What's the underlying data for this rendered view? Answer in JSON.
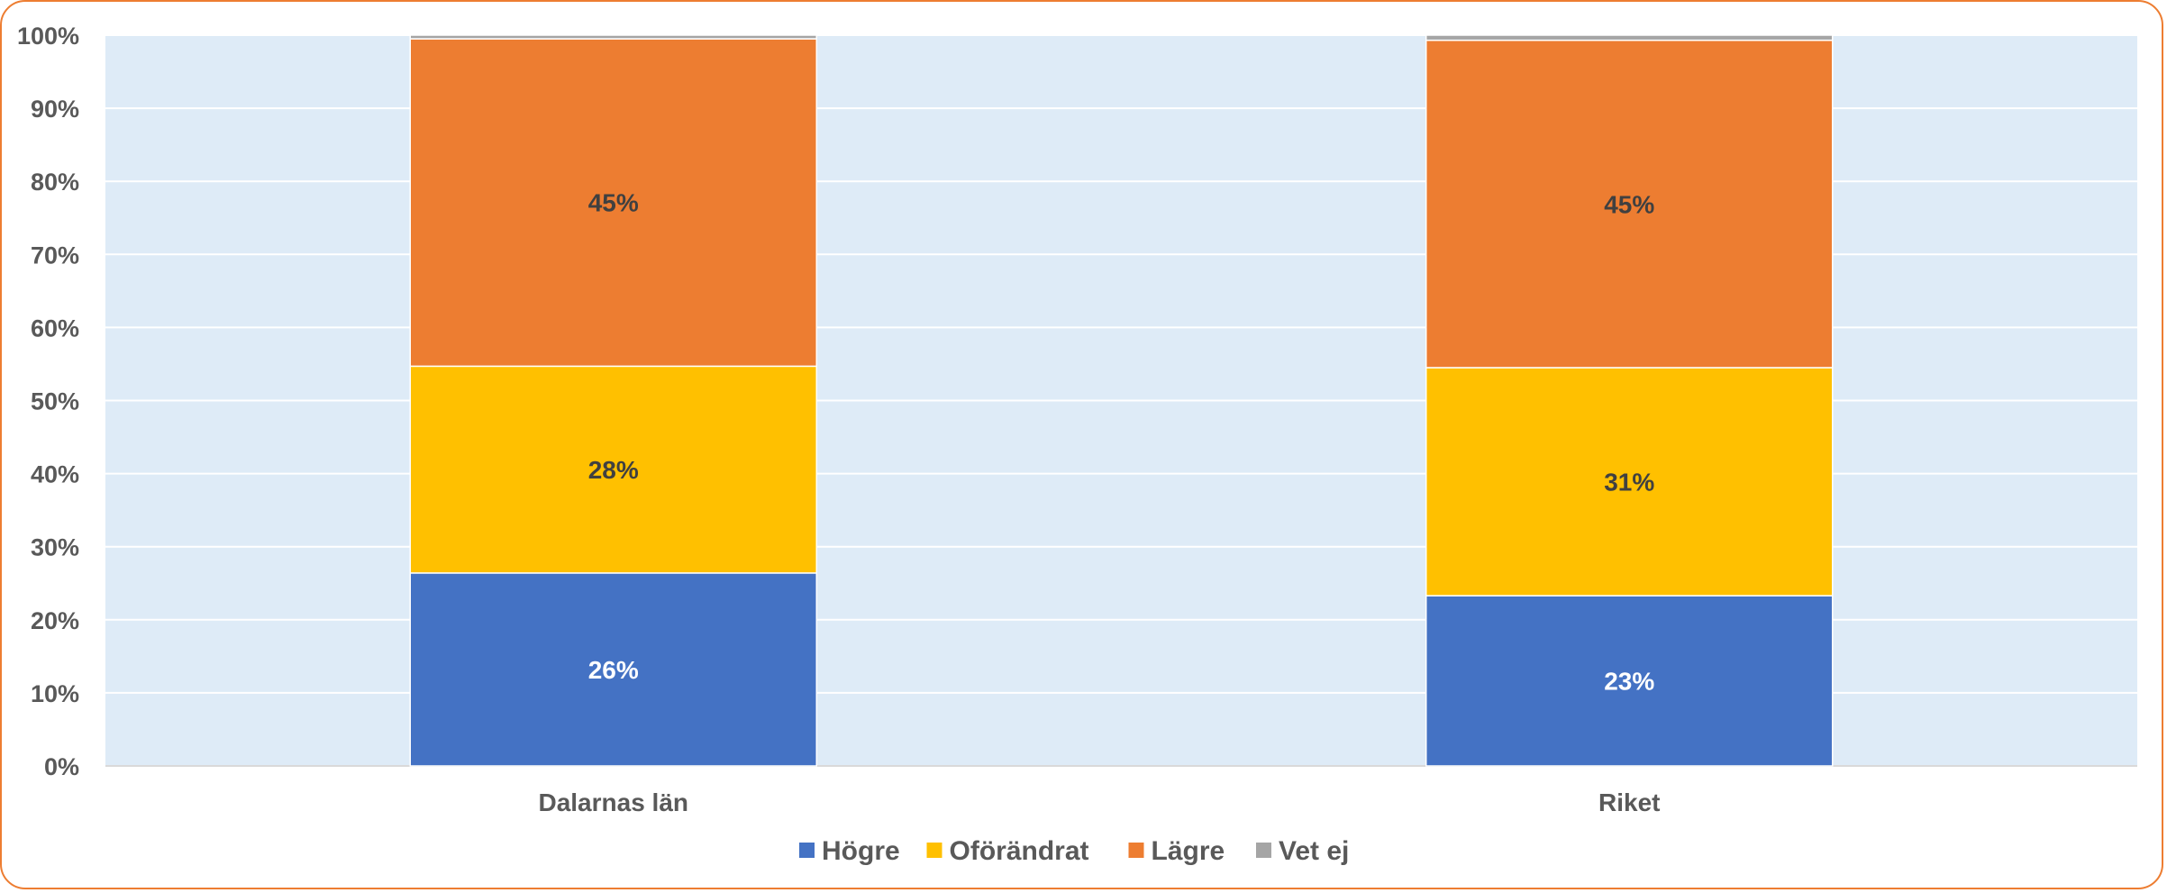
{
  "chart_data": {
    "type": "bar",
    "stacked": true,
    "percent_stacked": true,
    "categories": [
      "Dalarnas län",
      "Riket"
    ],
    "series": [
      {
        "name": "Högre",
        "values": [
          26.4,
          23.3
        ],
        "color": "#4472C4",
        "label_color": "#FFFFFF",
        "labels": [
          "26%",
          "23%"
        ]
      },
      {
        "name": "Oförändrat",
        "values": [
          28.3,
          31.2
        ],
        "color": "#FFC000",
        "label_color": "#404040",
        "labels": [
          "28%",
          "31%"
        ]
      },
      {
        "name": "Lägre",
        "values": [
          44.8,
          44.8
        ],
        "color": "#ED7D31",
        "label_color": "#404040",
        "labels": [
          "45%",
          "45%"
        ]
      },
      {
        "name": "Vet ej",
        "values": [
          0.5,
          0.7
        ],
        "color": "#A5A5A5",
        "label_color": "#404040",
        "labels": [
          "",
          ""
        ]
      }
    ],
    "ylim": [
      0,
      100
    ],
    "yticks": [
      "0%",
      "10%",
      "20%",
      "30%",
      "40%",
      "50%",
      "60%",
      "70%",
      "80%",
      "90%",
      "100%"
    ],
    "xlabel": "",
    "ylabel": "",
    "title": "",
    "grid": true,
    "legend": "bottom",
    "colors": {
      "plot_background": "#DEEBF7",
      "gridline": "#FFFFFF",
      "frame_border": "#ED7D31",
      "text": "#595959"
    }
  }
}
